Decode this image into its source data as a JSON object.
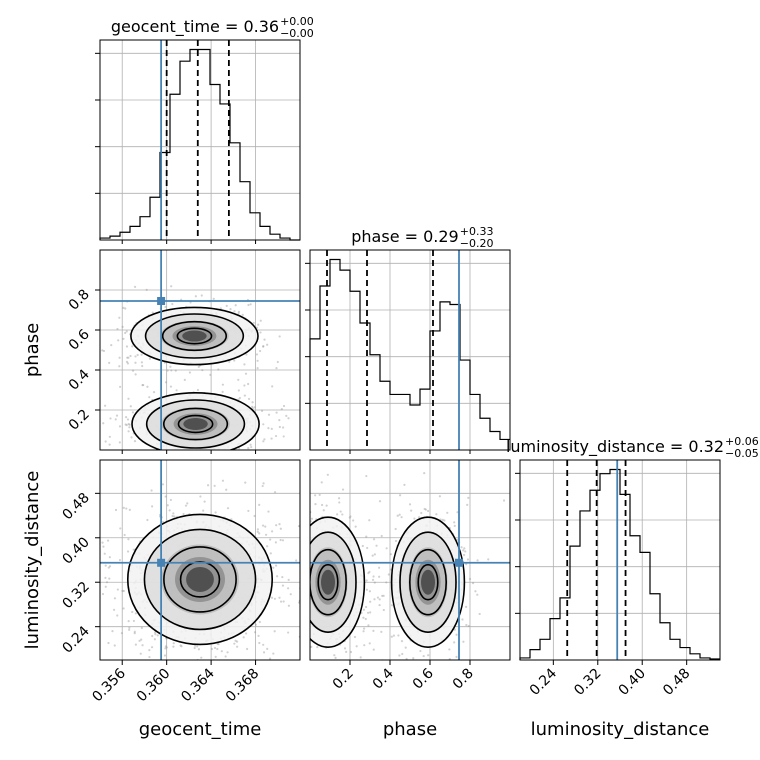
{
  "chart_data": {
    "type": "corner",
    "parameters": [
      "geocent_time",
      "phase",
      "luminosity_distance"
    ],
    "axis_labels": {
      "geocent_time": "geocent_time",
      "phase": "phase",
      "luminosity_distance": "luminosity_distance"
    },
    "ranges": {
      "geocent_time": [
        0.354,
        0.372
      ],
      "phase": [
        0.0,
        1.0
      ],
      "luminosity_distance": [
        0.18,
        0.54
      ]
    },
    "ticks": {
      "geocent_time": [
        "0.356",
        "0.360",
        "0.364",
        "0.368"
      ],
      "phase": [
        "0.2",
        "0.4",
        "0.6",
        "0.8"
      ],
      "luminosity_distance": [
        "0.24",
        "0.32",
        "0.40",
        "0.48"
      ]
    },
    "truths": {
      "geocent_time": 0.3595,
      "phase": 0.745,
      "luminosity_distance": 0.355
    },
    "titles": {
      "geocent_time": {
        "name": "geocent_time",
        "median": "0.36",
        "plus": "+0.00",
        "minus": "−0.00"
      },
      "phase": {
        "name": "phase",
        "median": "0.29",
        "plus": "+0.33",
        "minus": "−0.20"
      },
      "luminosity_distance": {
        "name": "luminosity_distance",
        "median": "0.32",
        "plus": "+0.06",
        "minus": "−0.05"
      }
    },
    "quantiles": {
      "geocent_time": [
        0.36,
        0.3628,
        0.3656
      ],
      "phase": [
        0.085,
        0.285,
        0.615
      ],
      "luminosity_distance": [
        0.265,
        0.318,
        0.37
      ]
    },
    "histograms": {
      "geocent_time": [
        1,
        2,
        4,
        7,
        12,
        22,
        45,
        75,
        92,
        98,
        98,
        80,
        70,
        50,
        30,
        14,
        7,
        3,
        1,
        0
      ],
      "phase": [
        42,
        62,
        72,
        68,
        60,
        48,
        36,
        26,
        21,
        21,
        17,
        23,
        45,
        56,
        55,
        34,
        21,
        12,
        7,
        4
      ],
      "luminosity_distance": [
        1,
        5,
        10,
        20,
        30,
        55,
        72,
        82,
        90,
        92,
        80,
        60,
        52,
        32,
        18,
        10,
        6,
        3,
        1,
        0.5
      ]
    },
    "grid": true,
    "truth_color": "#4682b4"
  }
}
